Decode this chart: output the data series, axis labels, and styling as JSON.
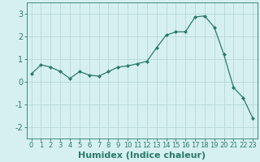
{
  "x": [
    0,
    1,
    2,
    3,
    4,
    5,
    6,
    7,
    8,
    9,
    10,
    11,
    12,
    13,
    14,
    15,
    16,
    17,
    18,
    19,
    20,
    21,
    22,
    23
  ],
  "y": [
    0.35,
    0.75,
    0.65,
    0.45,
    0.15,
    0.45,
    0.3,
    0.25,
    0.45,
    0.65,
    0.7,
    0.8,
    0.9,
    1.5,
    2.05,
    2.2,
    2.2,
    2.85,
    2.9,
    2.4,
    1.2,
    -0.25,
    -0.7,
    -1.6
  ],
  "line_color": "#2a7a6a",
  "marker": "D",
  "marker_size": 2.0,
  "bg_color": "#d6f0f0",
  "grid_color": "#b8d8d8",
  "xlabel": "Humidex (Indice chaleur)",
  "xlim": [
    -0.5,
    23.5
  ],
  "ylim": [
    -2.5,
    3.5
  ],
  "yticks": [
    -2,
    -1,
    0,
    1,
    2,
    3
  ],
  "xticks": [
    0,
    1,
    2,
    3,
    4,
    5,
    6,
    7,
    8,
    9,
    10,
    11,
    12,
    13,
    14,
    15,
    16,
    17,
    18,
    19,
    20,
    21,
    22,
    23
  ],
  "tick_color": "#2a7a6a",
  "label_color": "#2a7a6a",
  "tick_fontsize": 7,
  "xlabel_fontsize": 8
}
